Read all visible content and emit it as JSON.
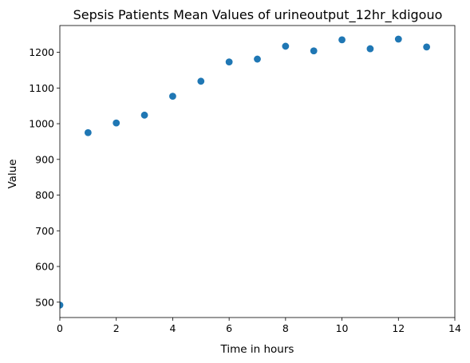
{
  "chart_data": {
    "type": "scatter",
    "title": "Sepsis Patients Mean Values of urineoutput_12hr_kdigouo",
    "xlabel": "Time in hours",
    "ylabel": "Value",
    "xlim": [
      0,
      14
    ],
    "ylim": [
      457,
      1275
    ],
    "xticks": [
      0,
      2,
      4,
      6,
      8,
      10,
      12,
      14
    ],
    "yticks": [
      500,
      600,
      700,
      800,
      900,
      1000,
      1100,
      1200
    ],
    "grid": false,
    "legend": false,
    "colors": {
      "marker": "#1f77b4"
    },
    "x": [
      0,
      1,
      2,
      3,
      4,
      5,
      6,
      7,
      8,
      9,
      10,
      11,
      12,
      13
    ],
    "y": [
      492,
      975,
      1002,
      1024,
      1077,
      1119,
      1173,
      1181,
      1217,
      1204,
      1235,
      1210,
      1237,
      1215
    ]
  }
}
